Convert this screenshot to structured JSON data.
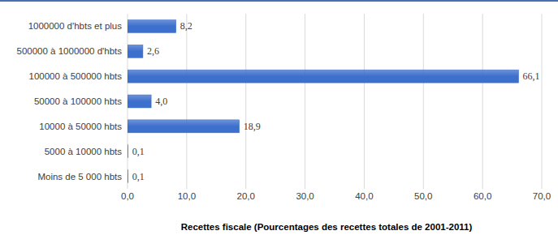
{
  "chart_data": {
    "type": "bar",
    "orientation": "horizontal",
    "categories": [
      "1000000 d'hbts et plus",
      "500000 à 1000000 d'hbts",
      "100000 à 500000 hbts",
      "50000 à 100000 hbts",
      "10000 à 50000 hbts",
      "5000 à 10000 hbts",
      "Moins de 5 000 hbts"
    ],
    "values": [
      8.2,
      2.6,
      66.1,
      4.0,
      18.9,
      0.1,
      0.1
    ],
    "value_labels": [
      "8,2",
      "2,6",
      "66,1",
      "4,0",
      "18,9",
      "0,1",
      "0,1"
    ],
    "color": "#3d6fcc",
    "xlabel": "Recettes fiscale (Pourcentages des recettes totales de 2001-2011)",
    "xlim": [
      0,
      70
    ],
    "xticks": [
      {
        "value": 0,
        "label": "0,0"
      },
      {
        "value": 10,
        "label": "10,0"
      },
      {
        "value": 20,
        "label": "20,0"
      },
      {
        "value": 30,
        "label": "30,0"
      },
      {
        "value": 40,
        "label": "40,0"
      },
      {
        "value": 50,
        "label": "50,0"
      },
      {
        "value": 60,
        "label": "60,0"
      },
      {
        "value": 70,
        "label": "70,0"
      }
    ],
    "grid": true,
    "data_labels": true
  }
}
